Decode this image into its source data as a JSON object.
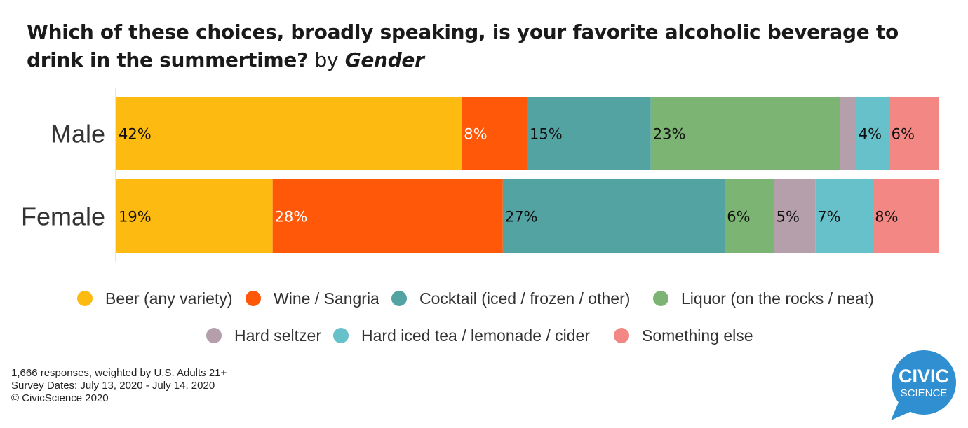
{
  "title": {
    "main": "Which of these choices, broadly speaking, is your favorite alcoholic beverage to drink in the summertime?",
    "by": "by",
    "group": "Gender"
  },
  "chart_data": {
    "type": "bar",
    "orientation": "horizontal",
    "stacked": true,
    "normalized": true,
    "title": "Which of these choices, broadly speaking, is your favorite alcoholic beverage to drink in the summertime? by Gender",
    "categories": [
      "Male",
      "Female"
    ],
    "series": [
      {
        "name": "Beer (any variety)",
        "color": "#FDBB11",
        "values": [
          42,
          19
        ],
        "labels": [
          "42%",
          "19%"
        ]
      },
      {
        "name": "Wine / Sangria",
        "color": "#FF5808",
        "values": [
          8,
          28
        ],
        "labels": [
          "8%",
          "28%"
        ]
      },
      {
        "name": "Cocktail (iced / frozen / other)",
        "color": "#52A3A2",
        "values": [
          15,
          27
        ],
        "labels": [
          "15%",
          "27%"
        ]
      },
      {
        "name": "Liquor (on the rocks / neat)",
        "color": "#7CB474",
        "values": [
          23,
          6
        ],
        "labels": [
          "23%",
          "6%"
        ]
      },
      {
        "name": "Hard seltzer",
        "color": "#B59FAB",
        "values": [
          2,
          5
        ],
        "labels": [
          "",
          "5%"
        ]
      },
      {
        "name": "Hard iced tea / lemonade / cider",
        "color": "#67C1CA",
        "values": [
          4,
          7
        ],
        "labels": [
          "4%",
          "7%"
        ]
      },
      {
        "name": "Something else",
        "color": "#F28784",
        "values": [
          6,
          8
        ],
        "labels": [
          "6%",
          "8%"
        ]
      }
    ],
    "legend_position": "bottom",
    "xlim": [
      0,
      100
    ]
  },
  "footer": {
    "responses": "1,666 responses, weighted by U.S. Adults 21+",
    "dates": "Survey Dates: July 13, 2020 - July 14, 2020",
    "copyright": "© CivicScience 2020"
  },
  "logo": {
    "line1": "CIVIC",
    "line2": "SCIENCE",
    "color": "#2F8FD0"
  }
}
